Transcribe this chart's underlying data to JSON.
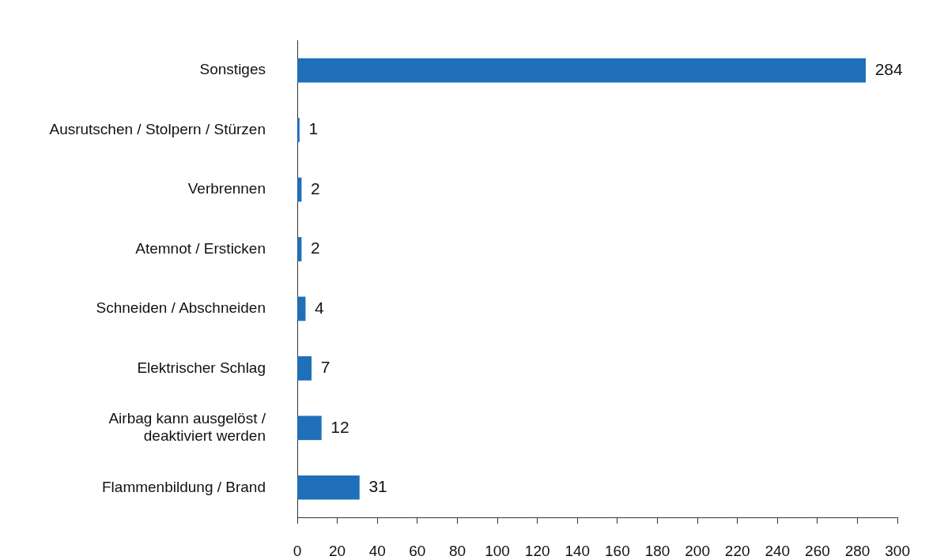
{
  "chart_data": {
    "type": "bar",
    "orientation": "horizontal",
    "categories": [
      "Sonstiges",
      "Ausrutschen / Stolpern / Stürzen",
      "Verbrennen",
      "Atemnot / Ersticken",
      "Schneiden / Abschneiden",
      "Elektrischer Schlag",
      "Airbag kann ausgelöst /\ndeaktiviert werden",
      "Flammenbildung / Brand"
    ],
    "values": [
      284,
      1,
      2,
      2,
      4,
      7,
      12,
      31
    ],
    "color": "#1f70b9",
    "xlim": [
      0,
      300
    ],
    "xticks": [
      0,
      20,
      40,
      60,
      80,
      100,
      120,
      140,
      160,
      180,
      200,
      220,
      240,
      260,
      280,
      300
    ],
    "data_labels": true,
    "grid": false,
    "legend": false
  }
}
